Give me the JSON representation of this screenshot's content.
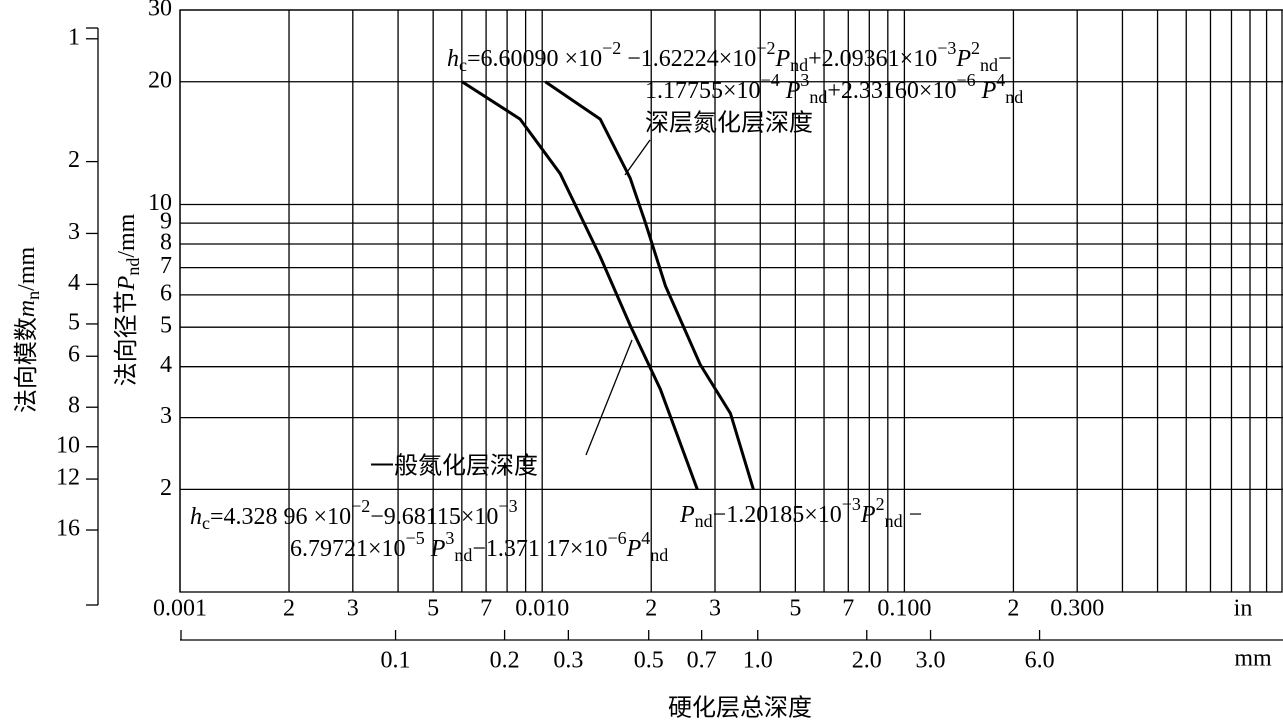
{
  "chart_data": {
    "type": "line",
    "x_label": "硬化层总深度",
    "y_label": [
      {
        "t": "法向径节"
      },
      {
        "t": "P",
        "s": "i"
      },
      {
        "t": "nd",
        "s": "sub"
      },
      {
        "t": "/mm"
      }
    ],
    "y3_label": [
      {
        "t": "法向模数"
      },
      {
        "t": "m",
        "s": "i"
      },
      {
        "t": "n",
        "s": "sub"
      },
      {
        "t": "/mm"
      }
    ],
    "x_unit": "in",
    "x2_unit": "mm",
    "log_x": true,
    "log_y": true,
    "xlim": [
      0.001,
      1.11
    ],
    "xticks": [
      {
        "value": 0.001,
        "label": "0.001"
      },
      {
        "value": 0.002,
        "label": "2"
      },
      {
        "value": 0.003,
        "label": "3"
      },
      {
        "value": 0.005,
        "label": "5"
      },
      {
        "value": 0.007,
        "label": "7"
      },
      {
        "value": 0.01,
        "label": "0.010"
      },
      {
        "value": 0.02,
        "label": "2"
      },
      {
        "value": 0.03,
        "label": "3"
      },
      {
        "value": 0.05,
        "label": "5"
      },
      {
        "value": 0.07,
        "label": "7"
      },
      {
        "value": 0.1,
        "label": "0.100"
      },
      {
        "value": 0.2,
        "label": "2"
      },
      {
        "value": 0.3,
        "label": "0.300"
      }
    ],
    "xgrid": [
      0.001,
      0.002,
      0.003,
      0.004,
      0.005,
      0.006,
      0.007,
      0.008,
      0.009,
      0.01,
      0.02,
      0.03,
      0.04,
      0.05,
      0.06,
      0.07,
      0.08,
      0.09,
      0.1,
      0.2,
      0.3,
      0.4,
      0.5,
      0.6,
      0.7,
      0.8,
      0.9,
      1
    ],
    "x2lim": [
      0.0254,
      28.2
    ],
    "x2ticks": [
      0.1,
      0.2,
      0.3,
      0.5,
      0.7,
      {
        "value": 1,
        "label": "1.0"
      },
      {
        "value": 2,
        "label": "2.0"
      },
      {
        "value": 3,
        "label": "3.0"
      },
      {
        "value": 6,
        "label": "6.0"
      }
    ],
    "ylim": [
      1.12,
      30
    ],
    "yticks": [
      2,
      3,
      4,
      5,
      6,
      7,
      8,
      9,
      10,
      20,
      30
    ],
    "y3lim": [
      22.7,
      0.85
    ],
    "y3ticks": [
      1,
      2,
      3,
      4,
      5,
      6,
      8,
      10,
      12,
      16
    ],
    "grid": true,
    "series": [
      {
        "name": "一般氮化层深度",
        "color": "#000000",
        "x": [
          0.00601,
          0.00869,
          0.01121,
          0.01446,
          0.0175,
          0.0212,
          0.0268
        ],
        "values": [
          20,
          16.2,
          11.9,
          7.45,
          5.05,
          3.52,
          2.0
        ]
      },
      {
        "name": "深层氮化层深度",
        "color": "#000000",
        "x": [
          0.0102,
          0.01446,
          0.0175,
          0.01925,
          0.0219,
          0.0273,
          0.0331,
          0.0383
        ],
        "values": [
          20,
          16.2,
          11.6,
          9.05,
          6.31,
          4.05,
          3.07,
          2.0
        ]
      }
    ],
    "formulas": [
      [
        {
          "t": "h",
          "s": "i"
        },
        {
          "t": "c",
          "s": "sub"
        },
        {
          "t": "=6.60090 ×10"
        },
        {
          "t": "−2",
          "s": "sup"
        },
        {
          "t": " −1.62224×10"
        },
        {
          "t": "−2",
          "s": "sup"
        },
        {
          "t": "P",
          "s": "i"
        },
        {
          "t": "nd",
          "s": "sub"
        },
        {
          "t": "+2.09361×10"
        },
        {
          "t": "−3",
          "s": "sup"
        },
        {
          "t": "P",
          "s": "i"
        },
        {
          "t": "2",
          "s": "sup"
        },
        {
          "t": "nd",
          "s": "sub"
        },
        {
          "t": "−"
        }
      ],
      [
        {
          "t": "1.17755×10"
        },
        {
          "t": "−4",
          "s": "sup"
        },
        {
          "t": " P",
          "s": "i"
        },
        {
          "t": "3",
          "s": "sup"
        },
        {
          "t": "nd",
          "s": "sub"
        },
        {
          "t": "+2.33160×10"
        },
        {
          "t": "−6",
          "s": "sup"
        },
        {
          "t": "  P",
          "s": "i"
        },
        {
          "t": "4",
          "s": "sup"
        },
        {
          "t": "nd",
          "s": "sub"
        }
      ],
      [
        {
          "t": "h",
          "s": "i"
        },
        {
          "t": "c",
          "s": "sub"
        },
        {
          "t": "=4.328  96 ×10"
        },
        {
          "t": "−2",
          "s": "sup"
        },
        {
          "t": "−9.68115×10"
        },
        {
          "t": "−3",
          "s": "sup"
        }
      ],
      [
        {
          "t": "P",
          "s": "i"
        },
        {
          "t": "nd",
          "s": "sub"
        },
        {
          "t": "−1.20185×10"
        },
        {
          "t": "−3",
          "s": "sup"
        },
        {
          "t": "P",
          "s": "i"
        },
        {
          "t": "2",
          "s": "sup"
        },
        {
          "t": "nd",
          "s": "sub"
        },
        {
          "t": " −"
        }
      ],
      [
        {
          "t": "6.79721×10"
        },
        {
          "t": "−5",
          "s": "sup"
        },
        {
          "t": " P",
          "s": "i"
        },
        {
          "t": "3",
          "s": "sup"
        },
        {
          "t": "nd",
          "s": "sub"
        },
        {
          "t": "−1.371  17×10"
        },
        {
          "t": "−6",
          "s": "sup"
        },
        {
          "t": "P",
          "s": "i"
        },
        {
          "t": "4",
          "s": "sup"
        },
        {
          "t": "nd",
          "s": "sub"
        }
      ]
    ]
  }
}
